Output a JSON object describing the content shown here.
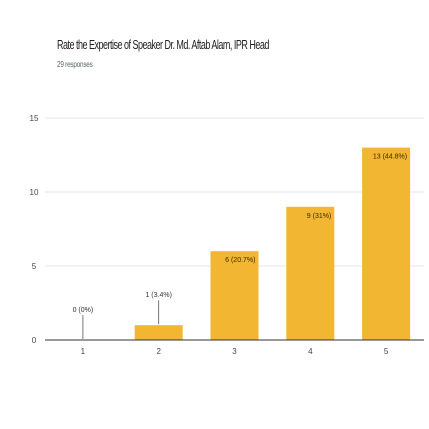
{
  "chart_data": {
    "type": "bar",
    "title": "Rate the Expertise of Speaker Dr. Md. Aftab Alam, IPR Head",
    "subtitle": "29 responses",
    "categories": [
      "1",
      "2",
      "3",
      "4",
      "5"
    ],
    "values": [
      0,
      1,
      6,
      9,
      13
    ],
    "data_labels": [
      "0 (0%)",
      "1 (3.4%)",
      "6 (20.7%)",
      "9 (31%)",
      "13 (44.8%)"
    ],
    "y_ticks": [
      "0",
      "5",
      "10",
      "15"
    ],
    "ylim": [
      0,
      15
    ],
    "grid": true,
    "bar_color": "#f2b632"
  }
}
